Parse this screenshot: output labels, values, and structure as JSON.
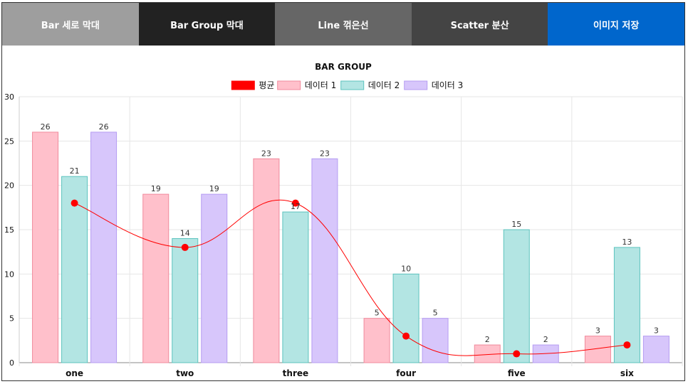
{
  "tabs": [
    {
      "label": "Bar 세로 막대",
      "color": "#9e9e9e"
    },
    {
      "label": "Bar Group 막대",
      "color": "#222222"
    },
    {
      "label": "Line 꺾은선",
      "color": "#666666"
    },
    {
      "label": "Scatter 분산",
      "color": "#444444"
    },
    {
      "label": "이미지 저장",
      "color": "#0066cc"
    }
  ],
  "chart_data": {
    "type": "bar",
    "title": "BAR GROUP",
    "categories": [
      "one",
      "two",
      "three",
      "four",
      "five",
      "six"
    ],
    "ylim": [
      0,
      30
    ],
    "yticks": [
      0,
      5,
      10,
      15,
      20,
      25,
      30
    ],
    "grid": true,
    "legend_position": "top",
    "series": [
      {
        "name": "평균",
        "type": "line",
        "values": [
          18,
          13,
          18,
          3,
          1,
          2
        ],
        "color": "#ff0000"
      },
      {
        "name": "데이터 1",
        "type": "bar",
        "values": [
          26,
          19,
          23,
          5,
          2,
          3
        ],
        "color": "#ffc0cb",
        "border": "#f08a9c"
      },
      {
        "name": "데이터 2",
        "type": "bar",
        "values": [
          21,
          14,
          17,
          10,
          15,
          13
        ],
        "color": "#b3e5e3",
        "border": "#5cc3be"
      },
      {
        "name": "데이터 3",
        "type": "bar",
        "values": [
          26,
          19,
          23,
          5,
          2,
          3
        ],
        "color": "#d7c6fb",
        "border": "#b59cf2"
      }
    ]
  }
}
